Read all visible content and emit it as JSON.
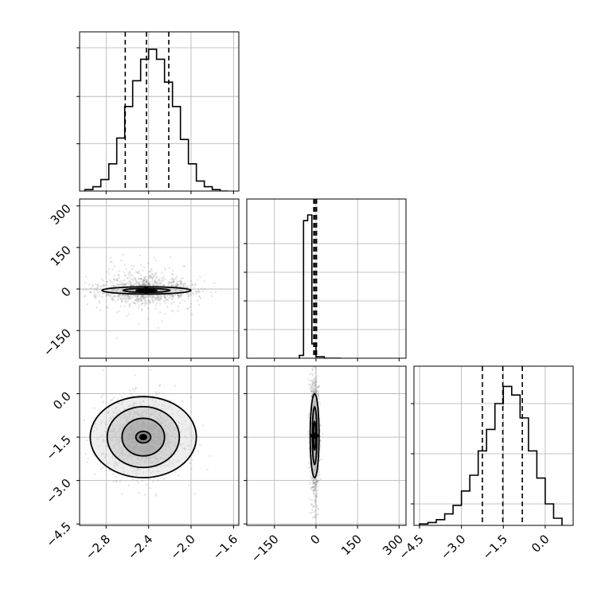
{
  "figure": {
    "type": "corner-plot",
    "background": "#ffffff",
    "grid_color": "#b0b0b0",
    "line_color": "#000000",
    "scatter_color": "#7f7f7f"
  },
  "chart_data": [
    {
      "id": "p0",
      "type": "histogram",
      "grid": true,
      "xlim": [
        -3.05,
        -1.55
      ],
      "ymax": 1.0,
      "bin_edges": [
        -3.0,
        -2.925,
        -2.85,
        -2.775,
        -2.7,
        -2.625,
        -2.55,
        -2.475,
        -2.4,
        -2.325,
        -2.25,
        -2.175,
        -2.1,
        -2.025,
        -1.95,
        -1.875,
        -1.8,
        -1.725,
        -1.65
      ],
      "counts": [
        0.01,
        0.03,
        0.08,
        0.19,
        0.37,
        0.59,
        0.77,
        0.92,
        0.99,
        0.92,
        0.76,
        0.59,
        0.36,
        0.19,
        0.07,
        0.03,
        0.01,
        0.0
      ],
      "quantiles": [
        -2.62,
        -2.42,
        -2.21
      ],
      "yticks_visible": [
        0.33,
        0.66,
        1.0
      ]
    },
    {
      "id": "p1",
      "type": "scatter-contour",
      "grid": true,
      "xlim": [
        -3.05,
        -1.55
      ],
      "ylim": [
        -250,
        325
      ],
      "yticks": [
        -150,
        0,
        150,
        300
      ],
      "yticklabels": [
        "−150",
        "0",
        "150",
        "300"
      ],
      "center": [
        -2.42,
        -5
      ],
      "spread": [
        0.22,
        12
      ],
      "contours": [
        [
          0.1,
          3
        ],
        [
          0.22,
          7
        ],
        [
          0.42,
          13
        ]
      ]
    },
    {
      "id": "p2",
      "type": "histogram",
      "grid": true,
      "xlim": [
        -250,
        325
      ],
      "ymax": 1.0,
      "bin_edges": [
        -60,
        -45,
        -30,
        -15,
        0,
        15,
        30,
        45,
        60,
        75,
        90
      ],
      "counts": [
        0.02,
        0.96,
        1.0,
        0.1,
        0.01,
        0.01,
        0.0,
        0.0,
        0.0,
        0.0
      ],
      "quantiles": [
        -8,
        -3,
        2
      ],
      "yticks_visible": [
        0.2,
        0.4,
        0.6,
        0.8
      ]
    },
    {
      "id": "p3",
      "type": "scatter-contour",
      "grid": true,
      "xlim": [
        -3.05,
        -1.55
      ],
      "ylim": [
        -4.55,
        0.95
      ],
      "xticks": [
        -2.8,
        -2.4,
        -2.0,
        -1.6
      ],
      "xticklabels": [
        "−2.8",
        "−2.4",
        "−2.0",
        "−1.6"
      ],
      "yticks": [
        -4.5,
        -3.0,
        -1.5,
        0.0
      ],
      "yticklabels": [
        "−4.5",
        "−3.0",
        "−1.5",
        "0.0"
      ],
      "center": [
        -2.45,
        -1.5
      ],
      "spread": [
        0.19,
        0.65
      ],
      "contours": [
        [
          0.07,
          0.2
        ],
        [
          0.2,
          0.65
        ],
        [
          0.34,
          1.05
        ],
        [
          0.5,
          1.4
        ]
      ]
    },
    {
      "id": "p4",
      "type": "scatter-contour",
      "grid": true,
      "xlim": [
        -250,
        325
      ],
      "ylim": [
        -4.55,
        0.95
      ],
      "xticks": [
        -150,
        0,
        150,
        300
      ],
      "xticklabels": [
        "−150",
        "0",
        "150",
        "300"
      ],
      "center": [
        -5,
        -1.45
      ],
      "spread": [
        8,
        0.7
      ],
      "contours": [
        [
          4,
          0.5
        ],
        [
          8,
          1.0
        ],
        [
          16,
          1.45
        ]
      ]
    },
    {
      "id": "p5",
      "type": "histogram",
      "grid": true,
      "xlim": [
        -4.7,
        1.0
      ],
      "ymax": 1.0,
      "bin_edges": [
        -4.5,
        -4.2,
        -3.9,
        -3.6,
        -3.3,
        -3.0,
        -2.7,
        -2.4,
        -2.1,
        -1.8,
        -1.5,
        -1.2,
        -0.9,
        -0.6,
        -0.3,
        0.0,
        0.3,
        0.6
      ],
      "counts": [
        0.01,
        0.02,
        0.04,
        0.08,
        0.14,
        0.24,
        0.35,
        0.52,
        0.67,
        0.85,
        0.97,
        0.91,
        0.75,
        0.52,
        0.33,
        0.15,
        0.05
      ],
      "quantiles": [
        -2.25,
        -1.52,
        -0.82
      ],
      "xticks": [
        -4.5,
        -3.0,
        -1.5,
        0.0
      ],
      "xticklabels": [
        "−4.5",
        "−3.0",
        "−1.5",
        "0.0"
      ],
      "yticks_visible": [
        0.15,
        0.5,
        0.85
      ]
    }
  ]
}
